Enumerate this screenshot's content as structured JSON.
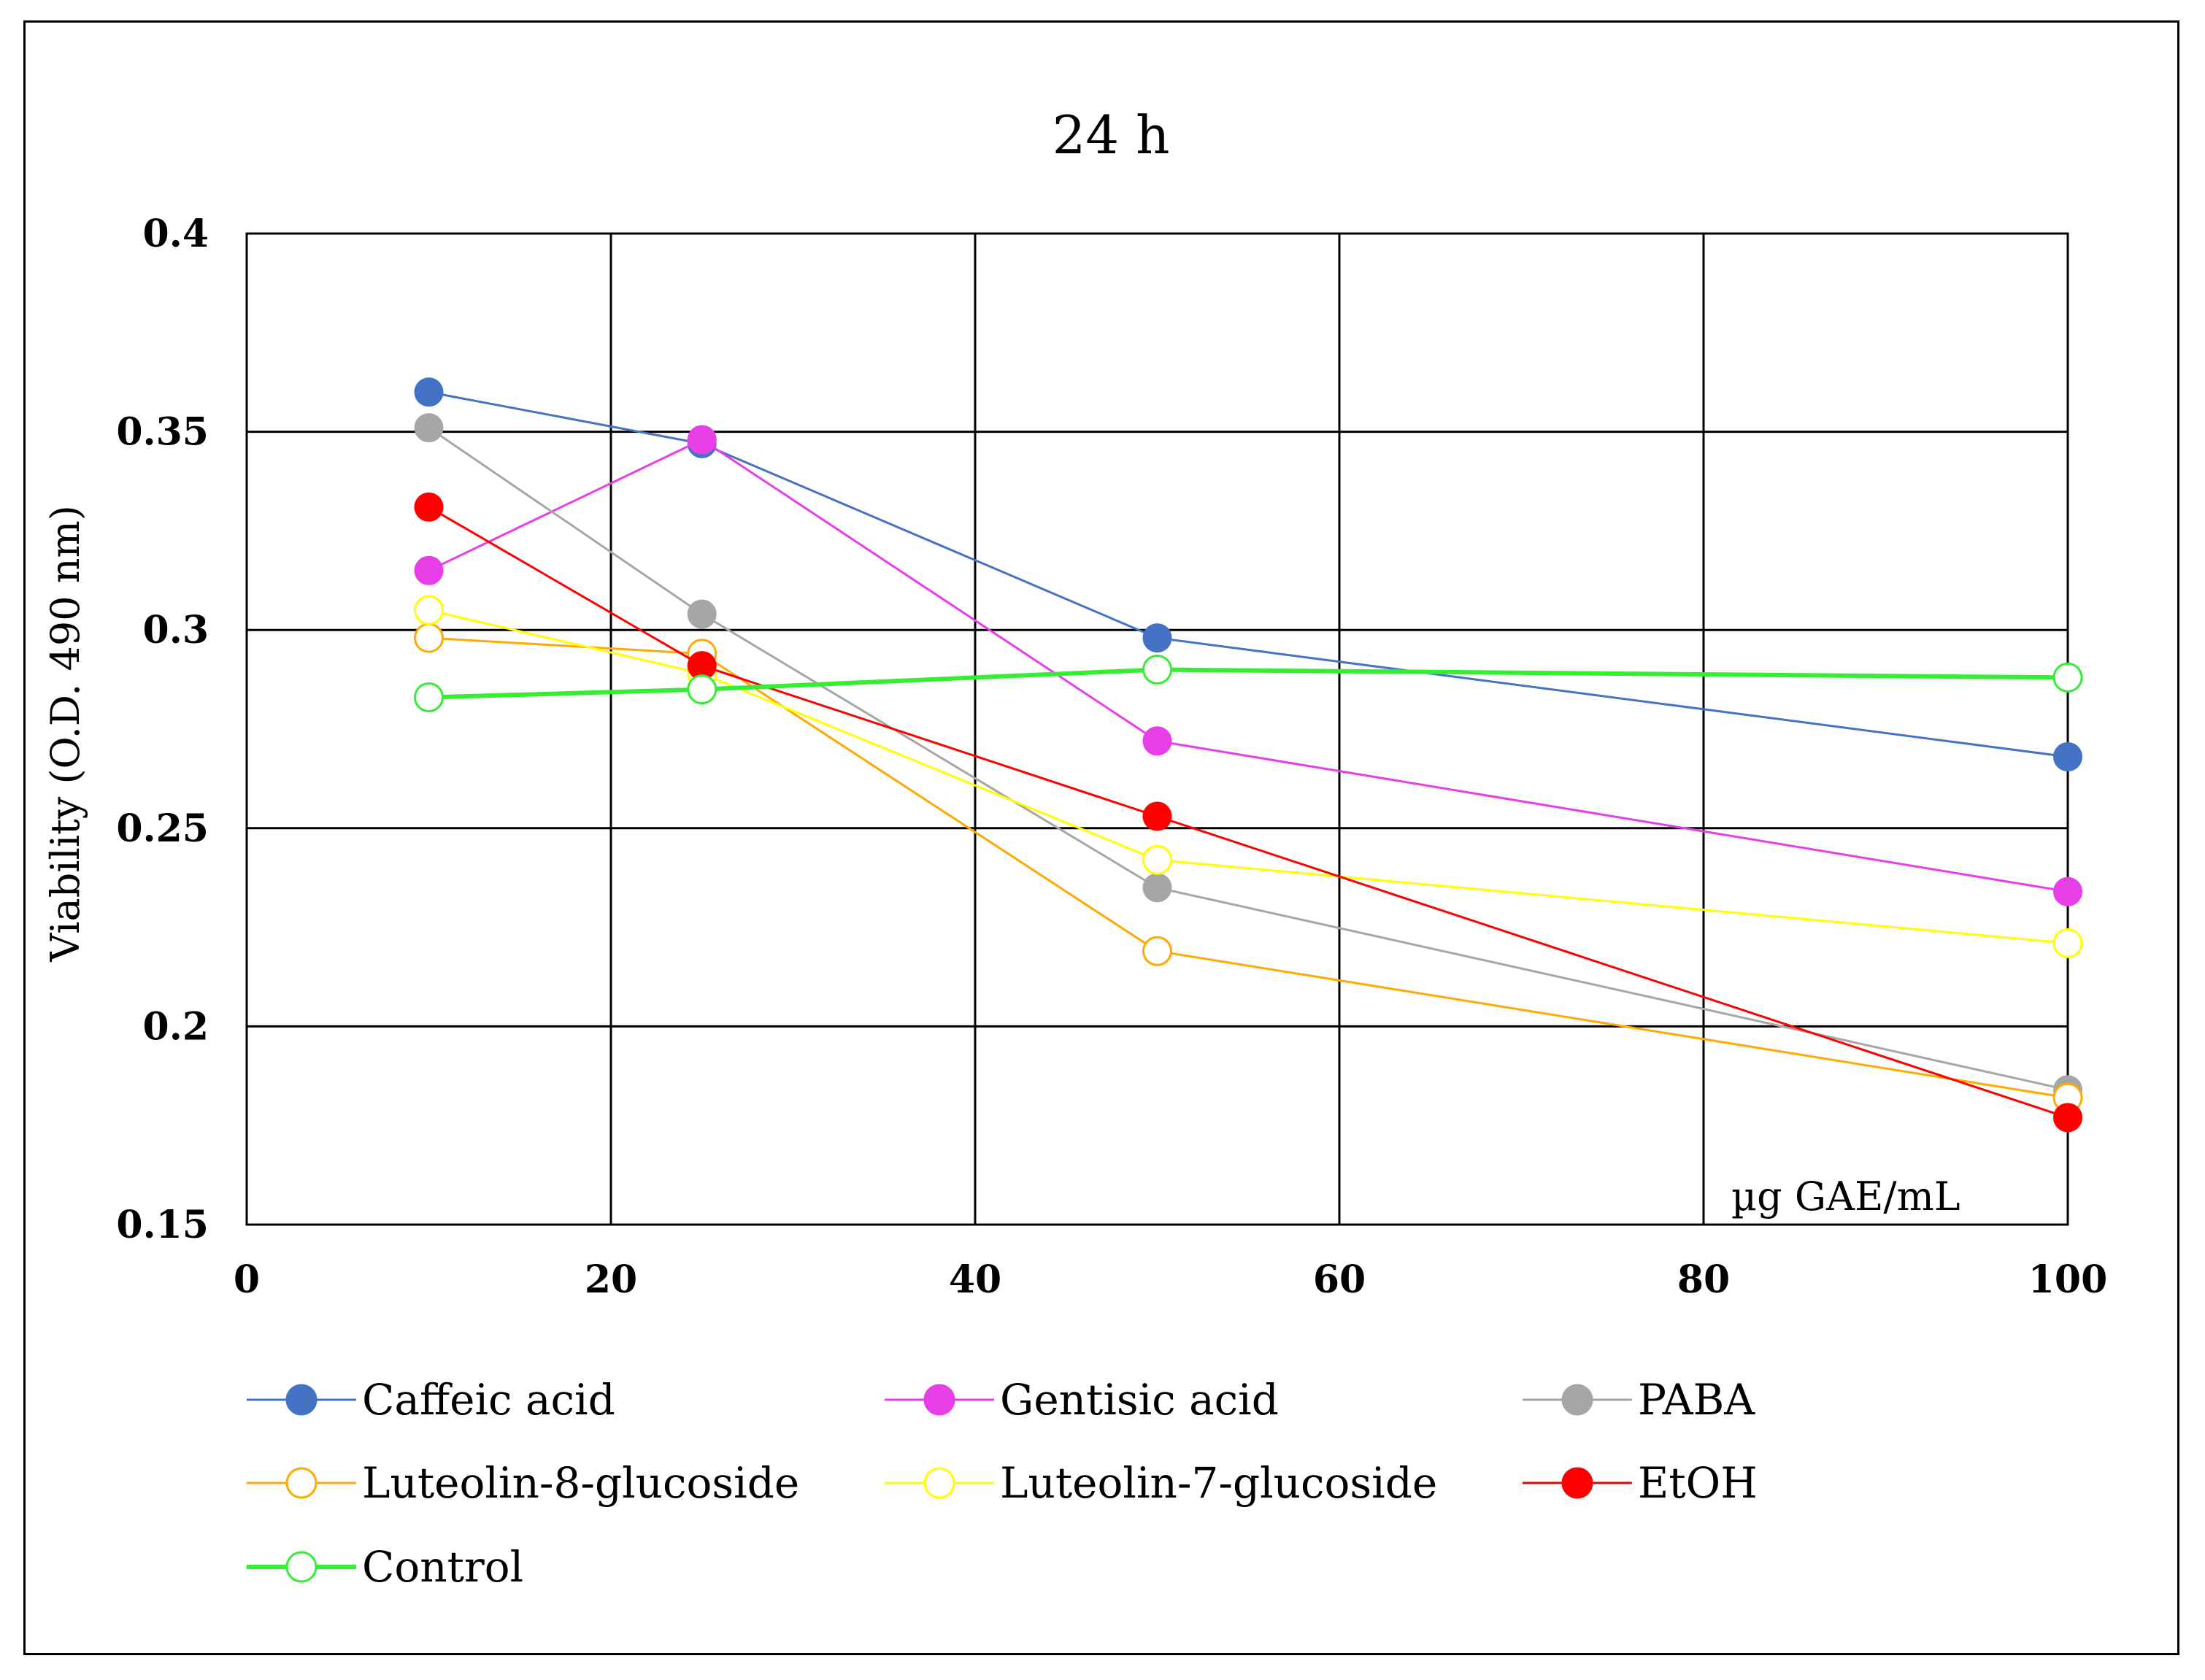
{
  "chart_data": {
    "type": "line",
    "title": "24 h",
    "xlabel": "µg GAE/mL",
    "ylabel": "Viability (O.D. 490 nm)",
    "xlim": [
      0,
      100
    ],
    "ylim": [
      0.15,
      0.4
    ],
    "x_ticks": [
      "0",
      "20",
      "40",
      "60",
      "80",
      "100"
    ],
    "y_ticks": [
      "0.15",
      "0.2",
      "0.25",
      "0.3",
      "0.35",
      "0.4"
    ],
    "grid": true,
    "legend_position": "bottom",
    "x": [
      10,
      25,
      50,
      100
    ],
    "series": [
      {
        "name": "Caffeic acid",
        "color": "#4472c4",
        "marker": "filled-circle",
        "values": [
          0.36,
          0.347,
          0.298,
          0.268
        ]
      },
      {
        "name": "Gentisic acid",
        "color": "#e83ee8",
        "marker": "filled-circle",
        "values": [
          0.315,
          0.348,
          0.272,
          0.234
        ]
      },
      {
        "name": "PABA",
        "color": "#a6a6a6",
        "marker": "filled-circle",
        "values": [
          0.351,
          0.304,
          0.235,
          0.184
        ]
      },
      {
        "name": "Luteolin-8-glucoside",
        "color": "#ffaa00",
        "marker": "open-circle",
        "values": [
          0.298,
          0.294,
          0.219,
          0.182
        ]
      },
      {
        "name": "Luteolin-7-glucoside",
        "color": "#ffff00",
        "marker": "open-circle",
        "values": [
          0.305,
          0.289,
          0.242,
          0.221
        ]
      },
      {
        "name": "EtOH",
        "color": "#ff0000",
        "marker": "filled-circle",
        "values": [
          0.331,
          0.291,
          0.253,
          0.177
        ]
      },
      {
        "name": "Control",
        "color": "#33ee33",
        "marker": "open-circle",
        "values": [
          0.283,
          0.285,
          0.29,
          0.288
        ]
      }
    ]
  }
}
